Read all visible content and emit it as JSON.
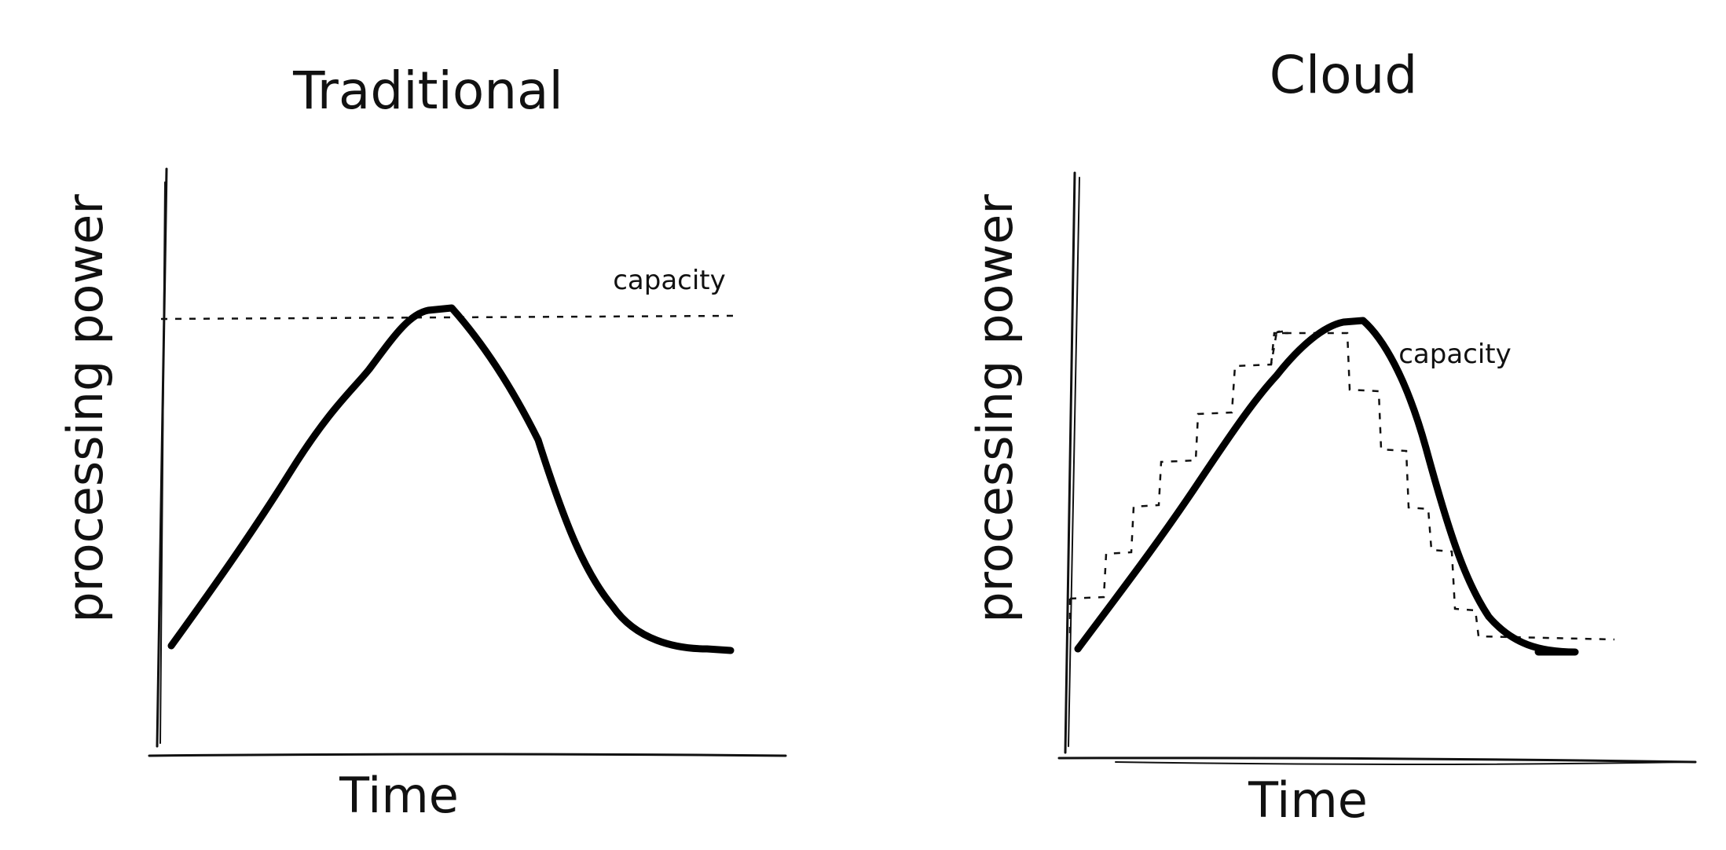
{
  "panels": [
    {
      "title": "Traditional",
      "y_label": "processing power",
      "x_label": "Time",
      "capacity_label": "capacity"
    },
    {
      "title": "Cloud",
      "y_label": "processing power",
      "x_label": "Time",
      "capacity_label": "capacity"
    }
  ]
}
